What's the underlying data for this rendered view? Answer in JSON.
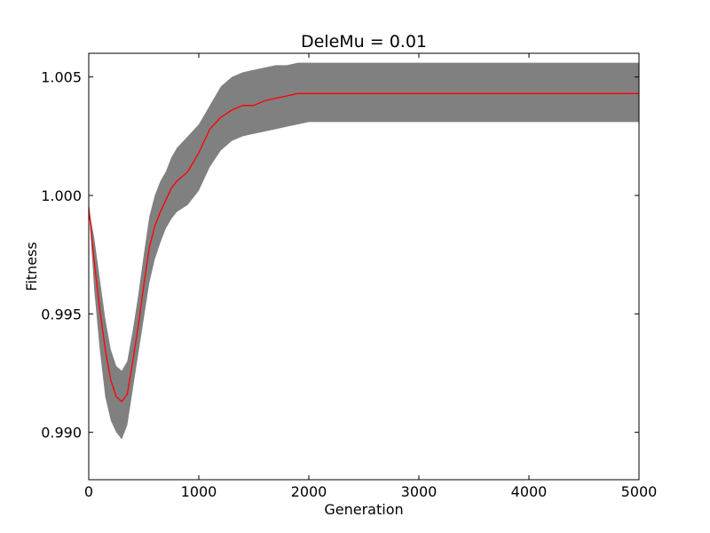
{
  "chart_data": {
    "type": "area",
    "title": "DeleMu = 0.01",
    "xlabel": "Generation",
    "ylabel": "Fitness",
    "xlim": [
      0,
      5000
    ],
    "ylim": [
      0.988,
      1.006
    ],
    "xticks": [
      0,
      1000,
      2000,
      3000,
      4000,
      5000
    ],
    "xtick_labels": [
      "0",
      "1000",
      "2000",
      "3000",
      "4000",
      "5000"
    ],
    "yticks": [
      0.99,
      0.995,
      1.0,
      1.005
    ],
    "ytick_labels": [
      "0.990",
      "0.995",
      "1.000",
      "1.005"
    ],
    "grid": false,
    "legend": "none",
    "colors": {
      "mean_line": "#ff0000",
      "band_fill": "#808080",
      "axes": "#000000",
      "background": "#ffffff"
    },
    "series": [
      {
        "role": "mean",
        "x": [
          0,
          50,
          100,
          150,
          200,
          250,
          300,
          350,
          400,
          450,
          500,
          550,
          600,
          650,
          700,
          750,
          800,
          900,
          1000,
          1100,
          1200,
          1300,
          1400,
          1500,
          1600,
          1700,
          1800,
          1900,
          2000,
          2100,
          2500,
          3000,
          4000,
          5000
        ],
        "y": [
          0.9995,
          0.9972,
          0.9952,
          0.9935,
          0.9922,
          0.9915,
          0.9913,
          0.9916,
          0.993,
          0.9945,
          0.9962,
          0.9978,
          0.9987,
          0.9993,
          0.9998,
          1.0003,
          1.0006,
          1.001,
          1.0018,
          1.0028,
          1.0033,
          1.0036,
          1.0038,
          1.0038,
          1.004,
          1.0041,
          1.0042,
          1.0043,
          1.0043,
          1.0043,
          1.0043,
          1.0043,
          1.0043,
          1.0043
        ]
      },
      {
        "role": "band",
        "x": [
          0,
          50,
          100,
          150,
          200,
          250,
          300,
          350,
          400,
          450,
          500,
          550,
          600,
          650,
          700,
          750,
          800,
          900,
          1000,
          1100,
          1200,
          1300,
          1400,
          1500,
          1600,
          1700,
          1800,
          1900,
          2000,
          2100,
          2500,
          3000,
          4000,
          5000
        ],
        "y_lower": [
          0.9995,
          0.996,
          0.9935,
          0.9915,
          0.9905,
          0.99,
          0.9897,
          0.9903,
          0.9918,
          0.9933,
          0.9948,
          0.9963,
          0.9973,
          0.998,
          0.9986,
          0.999,
          0.9993,
          0.9996,
          1.0002,
          1.0012,
          1.0019,
          1.0023,
          1.0025,
          1.0026,
          1.0027,
          1.0028,
          1.0029,
          1.003,
          1.0031,
          1.0031,
          1.0031,
          1.0031,
          1.0031,
          1.0031
        ],
        "y_upper": [
          0.9995,
          0.9982,
          0.9965,
          0.9948,
          0.9935,
          0.9928,
          0.9926,
          0.993,
          0.9943,
          0.9958,
          0.9975,
          0.9991,
          1.0,
          1.0006,
          1.001,
          1.0016,
          1.002,
          1.0025,
          1.003,
          1.0038,
          1.0046,
          1.005,
          1.0052,
          1.0053,
          1.0054,
          1.0055,
          1.0055,
          1.0056,
          1.0056,
          1.0056,
          1.0056,
          1.0056,
          1.0056,
          1.0056
        ]
      }
    ]
  }
}
